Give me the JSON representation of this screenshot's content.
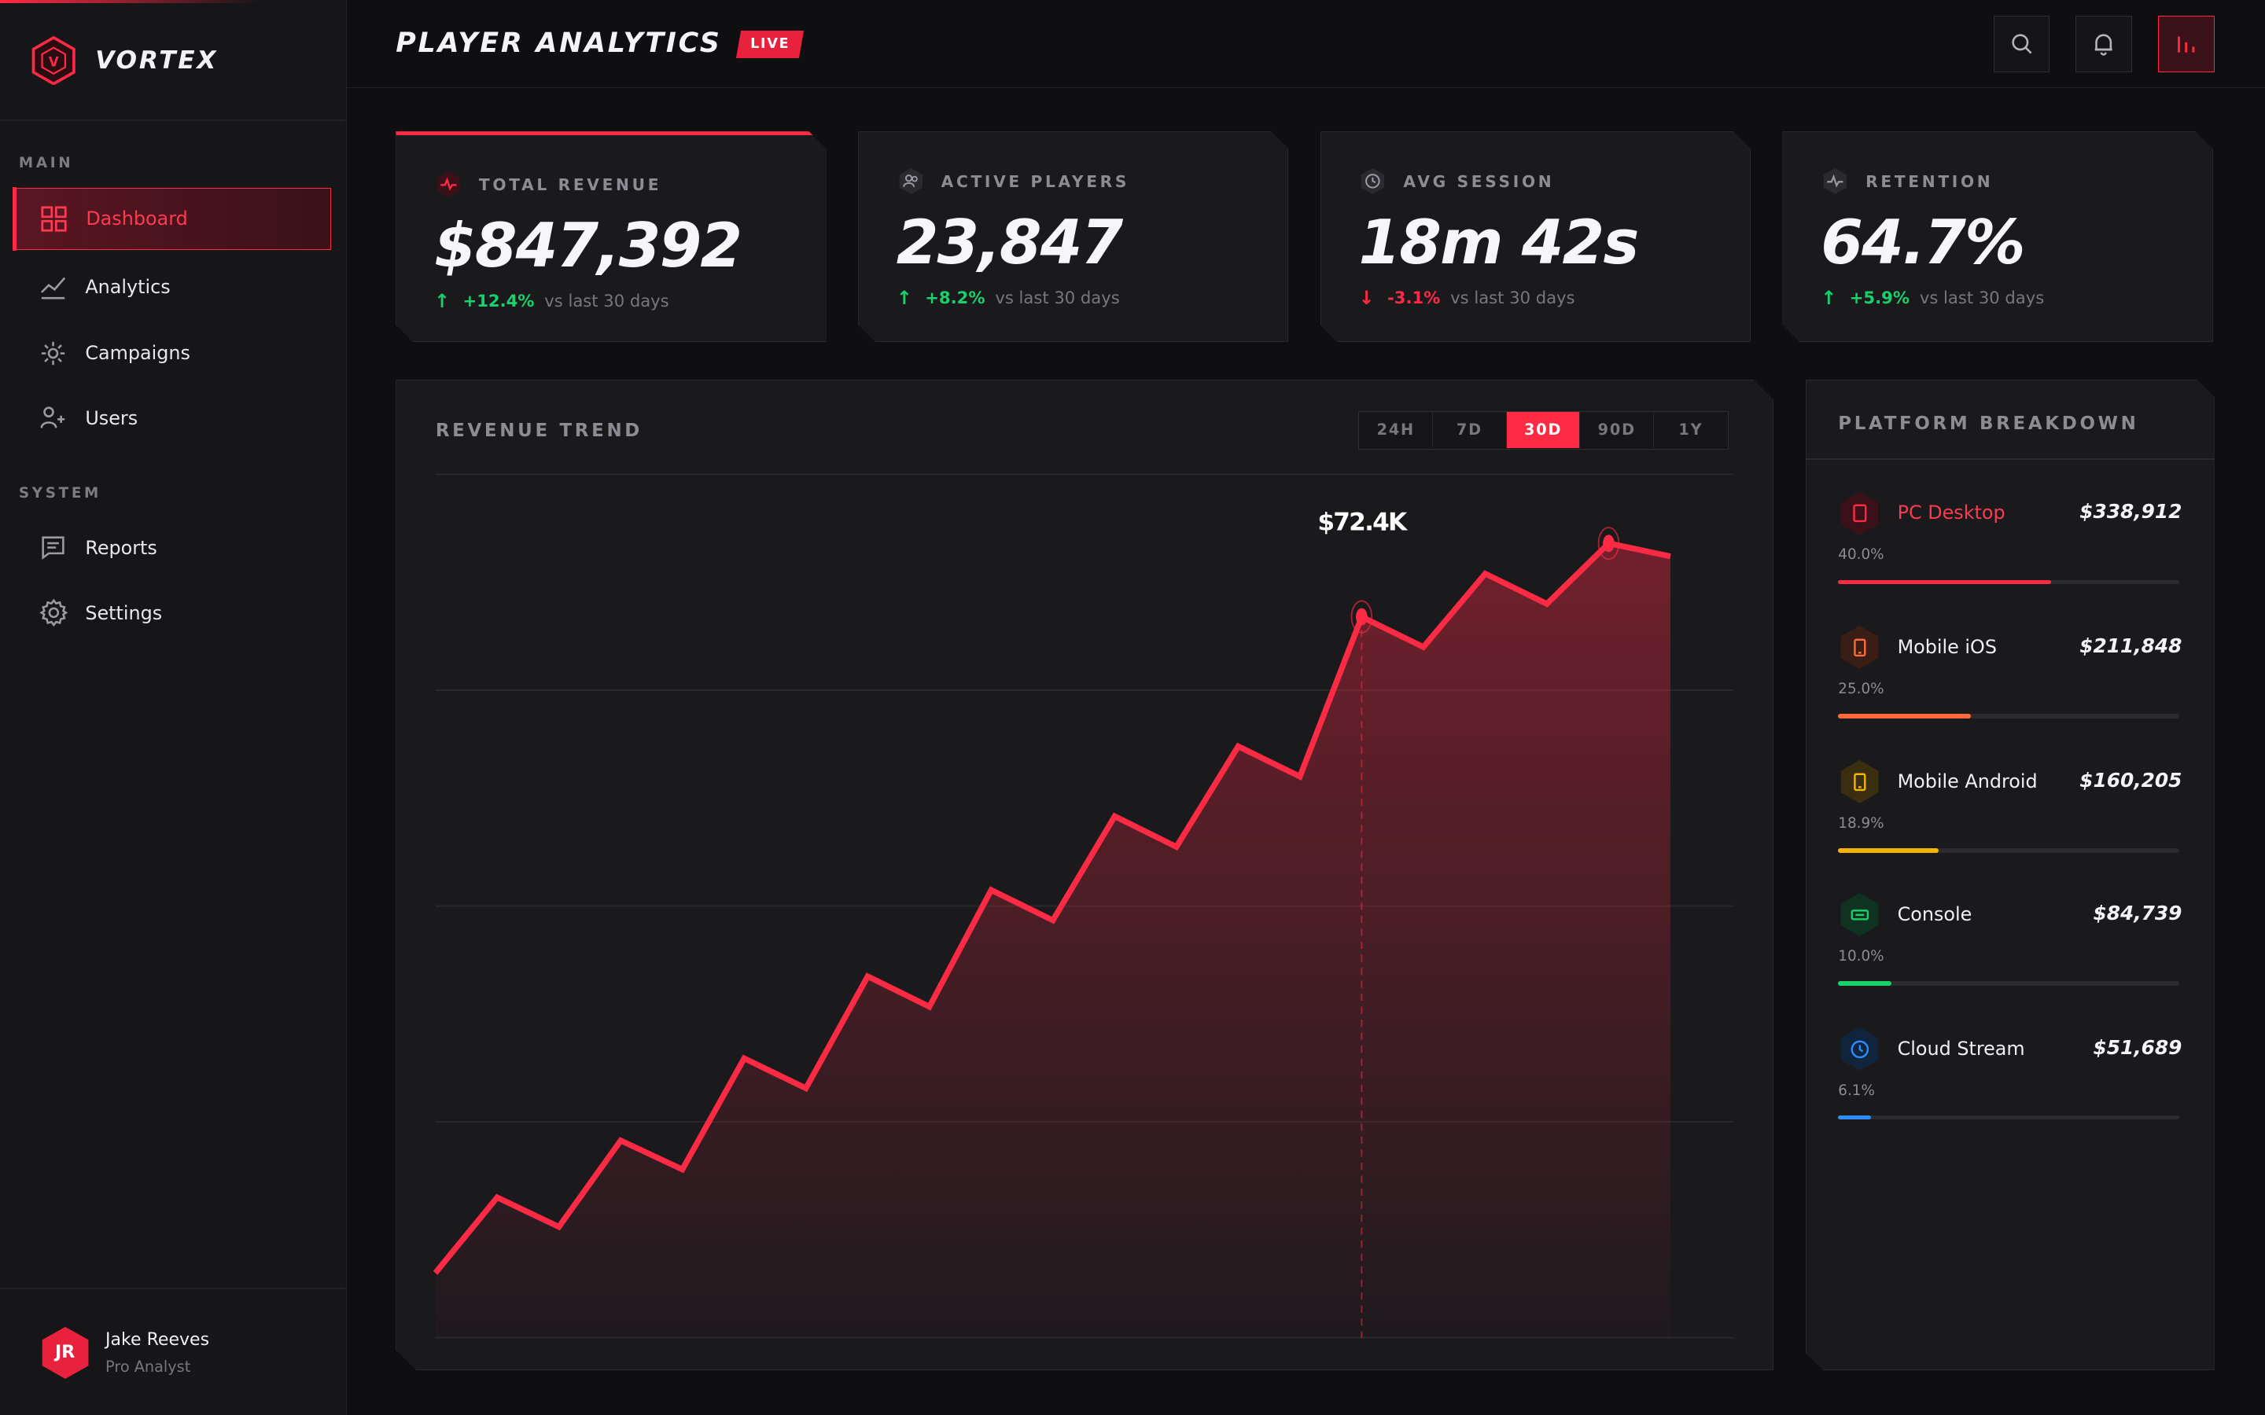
{
  "brand": {
    "name": "VORTEX",
    "logo_letter": "V"
  },
  "nav": {
    "main_label": "MAIN",
    "system_label": "SYSTEM",
    "items": [
      {
        "label": "Dashboard",
        "icon": "dashboard-icon",
        "active": true
      },
      {
        "label": "Analytics",
        "icon": "analytics-icon"
      },
      {
        "label": "Campaigns",
        "icon": "campaigns-icon"
      },
      {
        "label": "Users",
        "icon": "users-icon"
      },
      {
        "label": "Reports",
        "icon": "reports-icon"
      },
      {
        "label": "Settings",
        "icon": "settings-icon"
      }
    ]
  },
  "user": {
    "initials": "JR",
    "name": "Jake Reeves",
    "role": "Pro Analyst"
  },
  "header": {
    "title": "PLAYER ANALYTICS",
    "badge": "LIVE"
  },
  "stats": [
    {
      "label": "TOTAL REVENUE",
      "value": "$847,392",
      "delta": "+12.4%",
      "direction": "up",
      "ref": "vs last 30 days",
      "icon": "pulse-icon"
    },
    {
      "label": "ACTIVE PLAYERS",
      "value": "23,847",
      "delta": "+8.2%",
      "direction": "up",
      "ref": "vs last 30 days",
      "icon": "players-icon"
    },
    {
      "label": "AVG SESSION",
      "value": "18m 42s",
      "delta": "-3.1%",
      "direction": "down",
      "ref": "vs last 30 days",
      "icon": "clock-icon"
    },
    {
      "label": "RETENTION",
      "value": "64.7%",
      "delta": "+5.9%",
      "direction": "up",
      "ref": "vs last 30 days",
      "icon": "activity-icon"
    }
  ],
  "revenue_trend": {
    "title": "REVENUE TREND",
    "ranges": [
      "24H",
      "7D",
      "30D",
      "90D",
      "1Y"
    ],
    "active_range": "30D",
    "tooltip": "$72.4K"
  },
  "chart_data": {
    "type": "area",
    "title": "REVENUE TREND",
    "x": [
      1,
      2,
      3,
      4,
      5,
      6,
      7,
      8,
      9,
      10,
      11,
      12,
      13,
      14,
      15,
      16,
      17,
      18,
      19,
      20,
      21
    ],
    "values": [
      0.15,
      0.325,
      0.257,
      0.457,
      0.39,
      0.647,
      0.578,
      0.837,
      0.767,
      1.037,
      0.967,
      1.208,
      1.137,
      1.37,
      1.3,
      1.67,
      1.6,
      1.77,
      1.7,
      1.84,
      1.81
    ],
    "ylim": [
      0,
      2.0
    ],
    "highlight_index": 15,
    "marker_indices": [
      15,
      19
    ],
    "color": "#ff2a44",
    "grid": true
  },
  "platform": {
    "title": "PLATFORM BREAKDOWN",
    "items": [
      {
        "name": "PC Desktop",
        "amount": "$338,912",
        "pct": "40.0%",
        "share": 0.4,
        "color": "#ff2a44",
        "icon": "desktop-icon",
        "highlight": true
      },
      {
        "name": "Mobile iOS",
        "amount": "$211,848",
        "pct": "25.0%",
        "share": 0.25,
        "color": "#ff6a3d",
        "icon": "mobile-ios-icon"
      },
      {
        "name": "Mobile Android",
        "amount": "$160,205",
        "pct": "18.9%",
        "share": 0.189,
        "color": "#f5b400",
        "icon": "mobile-android-icon"
      },
      {
        "name": "Console",
        "amount": "$84,739",
        "pct": "10.0%",
        "share": 0.1,
        "color": "#19d06a",
        "icon": "console-icon"
      },
      {
        "name": "Cloud Stream",
        "amount": "$51,689",
        "pct": "6.1%",
        "share": 0.061,
        "color": "#2d8cff",
        "icon": "cloud-icon"
      }
    ]
  }
}
